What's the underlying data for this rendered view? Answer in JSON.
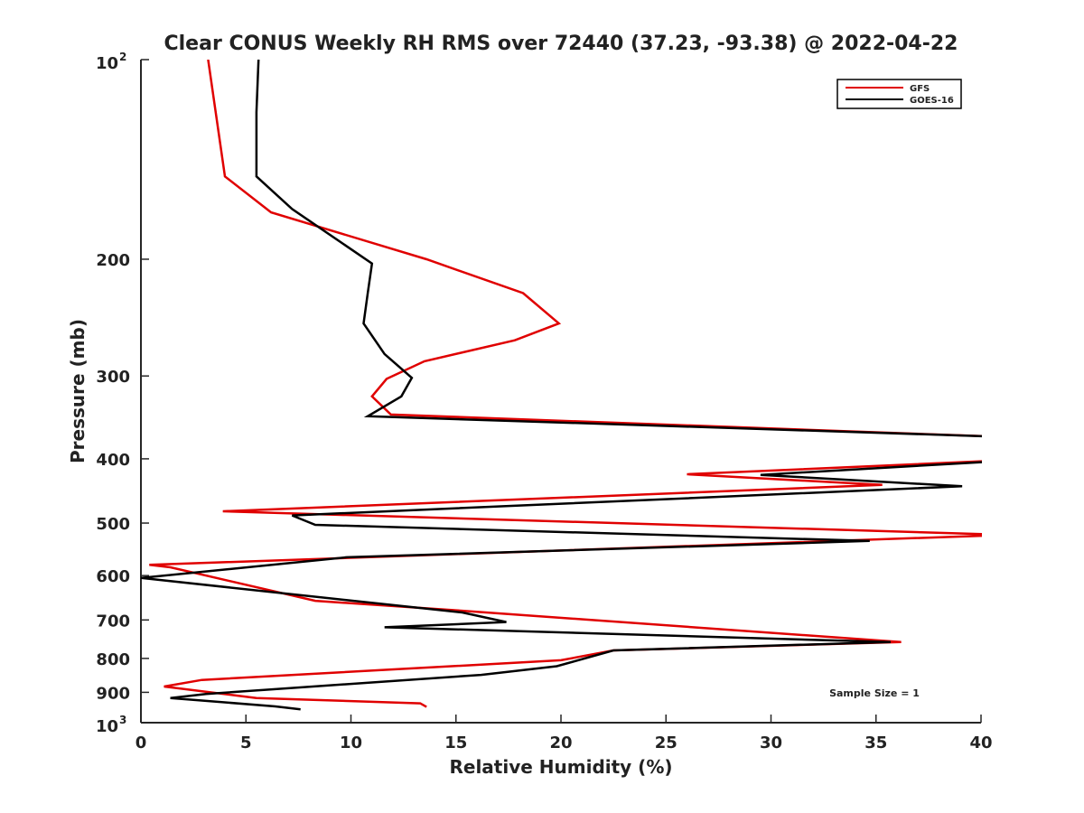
{
  "chart_data": {
    "type": "line",
    "title": "Clear CONUS Weekly RH RMS over 72440 (37.23, -93.38) @ 2022-04-22",
    "xlabel": "Relative Humidity (%)",
    "ylabel": "Pressure (mb)",
    "xlim": [
      0,
      40
    ],
    "ylim": [
      100,
      1000
    ],
    "y_scale": "log",
    "y_reversed": true,
    "x_ticks": [
      "0",
      "5",
      "10",
      "15",
      "20",
      "25",
      "30",
      "35",
      "40"
    ],
    "y_ticks": [
      {
        "value": 200,
        "label": "200"
      },
      {
        "value": 300,
        "label": "300"
      },
      {
        "value": 400,
        "label": "400"
      },
      {
        "value": 500,
        "label": "500"
      },
      {
        "value": 600,
        "label": "600"
      },
      {
        "value": 700,
        "label": "700"
      },
      {
        "value": 800,
        "label": "800"
      },
      {
        "value": 900,
        "label": "900"
      }
    ],
    "y_endpoints": [
      {
        "value": 100,
        "base": "10",
        "exp": "2"
      },
      {
        "value": 1000,
        "base": "10",
        "exp": "3"
      }
    ],
    "grid": false,
    "legend_position": "top-right",
    "annotation": "Sample Size = 1",
    "series": [
      {
        "name": "GFS",
        "color": "#e00000",
        "points": [
          [
            3.2,
            100
          ],
          [
            4.0,
            150
          ],
          [
            6.2,
            170
          ],
          [
            13.6,
            200
          ],
          [
            18.2,
            225
          ],
          [
            19.9,
            250
          ],
          [
            17.8,
            265
          ],
          [
            13.5,
            285
          ],
          [
            11.7,
            303
          ],
          [
            11.0,
            322
          ],
          [
            11.9,
            343
          ],
          [
            40.4,
            370
          ],
          [
            40.4,
            403
          ],
          [
            26.0,
            422
          ],
          [
            35.3,
            438
          ],
          [
            3.9,
            480
          ],
          [
            40.4,
            520
          ],
          [
            40.4,
            522
          ],
          [
            0.4,
            578
          ],
          [
            1.4,
            583
          ],
          [
            8.3,
            655
          ],
          [
            15.3,
            678
          ],
          [
            36.2,
            756
          ],
          [
            22.5,
            778
          ],
          [
            20.0,
            805
          ],
          [
            2.9,
            862
          ],
          [
            1.1,
            882
          ],
          [
            5.5,
            918
          ],
          [
            13.3,
            935
          ],
          [
            13.6,
            947
          ]
        ]
      },
      {
        "name": "GOES-16",
        "color": "#000000",
        "points": [
          [
            5.6,
            100
          ],
          [
            5.5,
            120
          ],
          [
            5.5,
            150
          ],
          [
            7.2,
            168
          ],
          [
            11.0,
            203
          ],
          [
            10.8,
            225
          ],
          [
            10.6,
            250
          ],
          [
            11.6,
            278
          ],
          [
            12.9,
            302
          ],
          [
            12.4,
            322
          ],
          [
            10.8,
            345
          ],
          [
            40.4,
            370
          ],
          [
            40.4,
            404
          ],
          [
            29.5,
            423
          ],
          [
            39.1,
            440
          ],
          [
            7.2,
            487
          ],
          [
            8.3,
            503
          ],
          [
            34.7,
            532
          ],
          [
            9.8,
            563
          ],
          [
            0.0,
            605
          ],
          [
            15.3,
            682
          ],
          [
            17.4,
            705
          ],
          [
            11.6,
            718
          ],
          [
            35.7,
            756
          ],
          [
            22.5,
            778
          ],
          [
            19.8,
            822
          ],
          [
            16.2,
            847
          ],
          [
            3.1,
            905
          ],
          [
            1.4,
            918
          ],
          [
            6.4,
            945
          ],
          [
            7.6,
            955
          ]
        ]
      }
    ]
  }
}
